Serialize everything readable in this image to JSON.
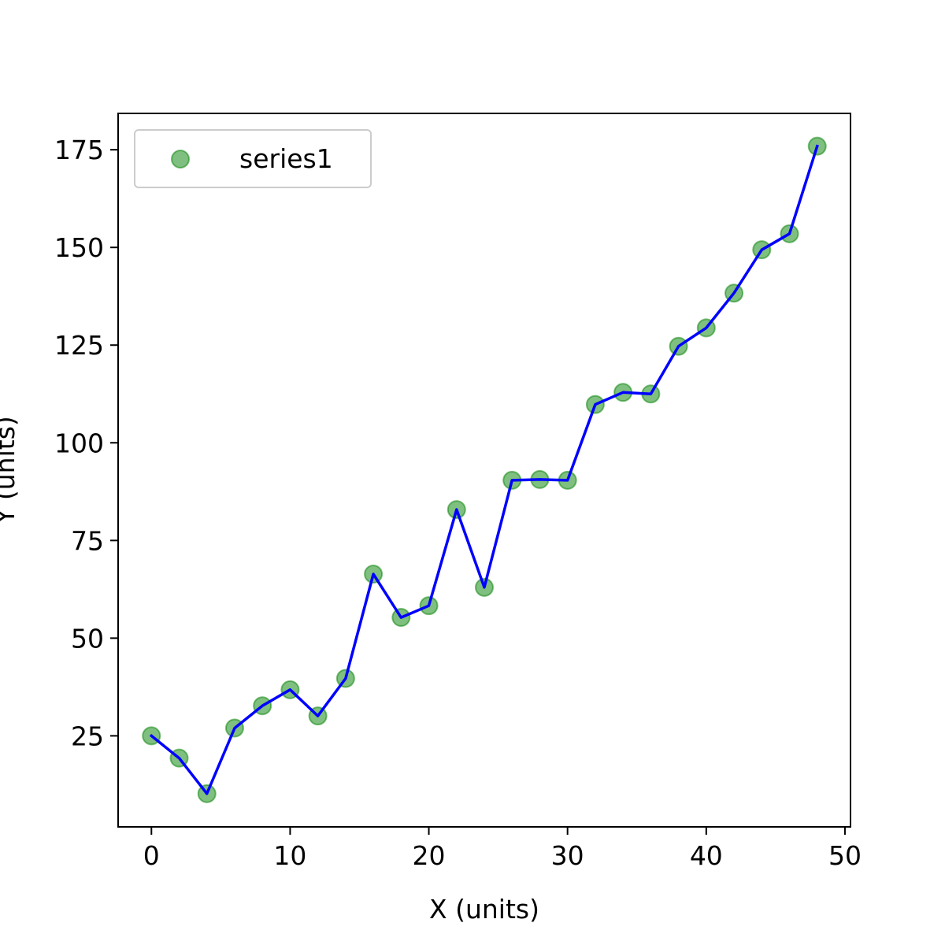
{
  "chart_data": {
    "type": "scatter",
    "title": "",
    "xlabel": "X (units)",
    "ylabel": "Y (units)",
    "xlim": [
      -2.4,
      50.4
    ],
    "ylim": [
      1.7,
      184.3
    ],
    "xticks": [
      0,
      10,
      20,
      30,
      40,
      50
    ],
    "yticks": [
      25,
      50,
      75,
      100,
      125,
      150,
      175
    ],
    "grid": false,
    "legend": {
      "position": "top-left",
      "entries": [
        "series1"
      ]
    },
    "series": [
      {
        "name": "series1",
        "kind": "scatter",
        "color": "#008000",
        "x": [
          0,
          2,
          4,
          6,
          8,
          10,
          12,
          14,
          16,
          18,
          20,
          22,
          24,
          26,
          28,
          30,
          32,
          34,
          36,
          38,
          40,
          42,
          44,
          46,
          48
        ],
        "y": [
          25.0,
          19.3,
          10.2,
          27.0,
          32.7,
          36.8,
          30.1,
          39.7,
          66.4,
          55.3,
          58.3,
          82.9,
          63.0,
          90.4,
          90.6,
          90.4,
          109.8,
          112.9,
          112.5,
          124.7,
          129.4,
          138.3,
          149.4,
          153.5,
          175.9
        ]
      },
      {
        "name": "",
        "kind": "line",
        "color": "#0000ff",
        "x": [
          0,
          2,
          4,
          6,
          8,
          10,
          12,
          14,
          16,
          18,
          20,
          22,
          24,
          26,
          28,
          30,
          32,
          34,
          36,
          38,
          40,
          42,
          44,
          46,
          48
        ],
        "y": [
          25.0,
          19.3,
          10.2,
          27.0,
          32.7,
          36.8,
          30.1,
          39.7,
          66.4,
          55.3,
          58.3,
          82.9,
          63.0,
          90.4,
          90.6,
          90.4,
          109.8,
          112.9,
          112.5,
          124.7,
          129.4,
          138.3,
          149.4,
          153.5,
          175.9
        ]
      }
    ]
  }
}
